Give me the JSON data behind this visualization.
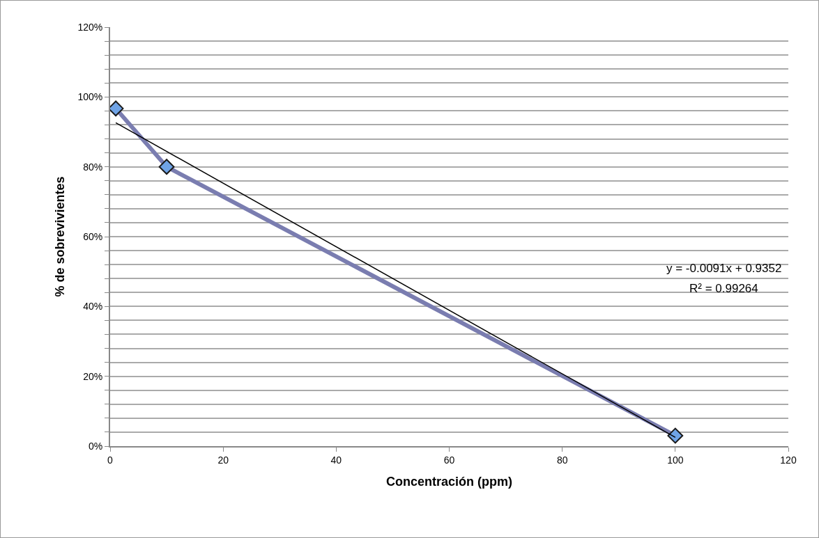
{
  "chart_data": {
    "type": "line",
    "xlabel": "Concentración (ppm)",
    "ylabel": "% de sobrevivientes",
    "x": [
      1,
      10,
      100
    ],
    "series": [
      {
        "color": "#7a7db0",
        "colors": [
          "#6fa3e6",
          "#6fa3e6",
          "#6fa3e6"
        ],
        "values": [
          96.7,
          80,
          3
        ],
        "marker": "diamond"
      },
      {
        "type": "line",
        "color": "#000000",
        "x": [
          1,
          100
        ],
        "values": [
          92.6,
          2.5
        ],
        "marker": "none"
      }
    ],
    "xlim": [
      0,
      120
    ],
    "xticks": [
      0,
      20,
      40,
      60,
      80,
      100,
      120
    ],
    "ylim": [
      0,
      120
    ],
    "yticks": [
      {
        "value": 0,
        "label": "0%"
      },
      {
        "value": 4,
        "label": null
      },
      {
        "value": 8,
        "label": null
      },
      {
        "value": 12,
        "label": null
      },
      {
        "value": 16,
        "label": null
      },
      {
        "value": 20,
        "label": "20%"
      },
      {
        "value": 24,
        "label": null
      },
      {
        "value": 28,
        "label": null
      },
      {
        "value": 32,
        "label": null
      },
      {
        "value": 36,
        "label": null
      },
      {
        "value": 40,
        "label": "40%"
      },
      {
        "value": 44,
        "label": null
      },
      {
        "value": 48,
        "label": null
      },
      {
        "value": 52,
        "label": null
      },
      {
        "value": 56,
        "label": null
      },
      {
        "value": 60,
        "label": "60%"
      },
      {
        "value": 64,
        "label": null
      },
      {
        "value": 68,
        "label": null
      },
      {
        "value": 72,
        "label": null
      },
      {
        "value": 76,
        "label": null
      },
      {
        "value": 80,
        "label": "80%"
      },
      {
        "value": 84,
        "label": null
      },
      {
        "value": 88,
        "label": null
      },
      {
        "value": 92,
        "label": null
      },
      {
        "value": 96,
        "label": null
      },
      {
        "value": 100,
        "label": "100%"
      },
      {
        "value": 104,
        "label": null
      },
      {
        "value": 108,
        "label": null
      },
      {
        "value": 112,
        "label": null
      },
      {
        "value": 116,
        "label": null
      },
      {
        "value": 120,
        "label": "120%"
      }
    ],
    "grid": "y",
    "annotations": [
      "y = -0.0091x + 0.9352",
      "R² = 0.99264"
    ]
  }
}
